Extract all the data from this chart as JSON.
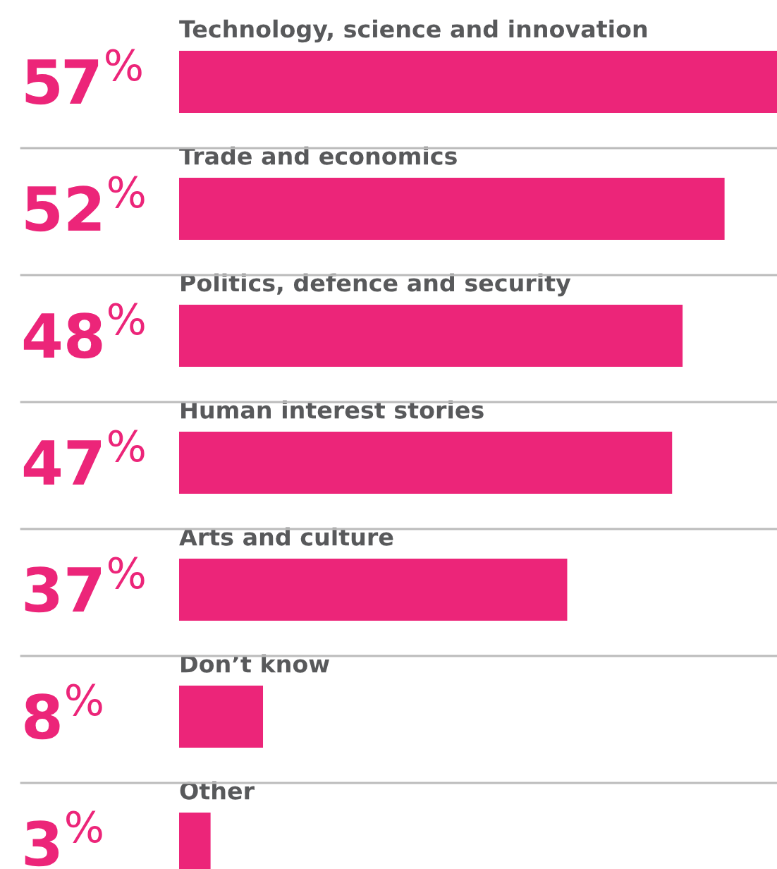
{
  "chart_data": {
    "type": "bar",
    "orientation": "horizontal",
    "categories": [
      "Technology, science and innovation",
      "Trade and economics",
      "Politics, defence and security",
      "Human interest stories",
      "Arts and culture",
      "Don’t know",
      "Other"
    ],
    "values": [
      57,
      52,
      48,
      47,
      37,
      8,
      3
    ],
    "value_labels": [
      "57$^{%}$",
      "52$^{%}$",
      "48$^{%}$",
      "47$^{%}$",
      "37$^{%}$",
      "8$^{%}$",
      "3$^{%}$"
    ],
    "color": "#ec2579",
    "legend": false
  }
}
